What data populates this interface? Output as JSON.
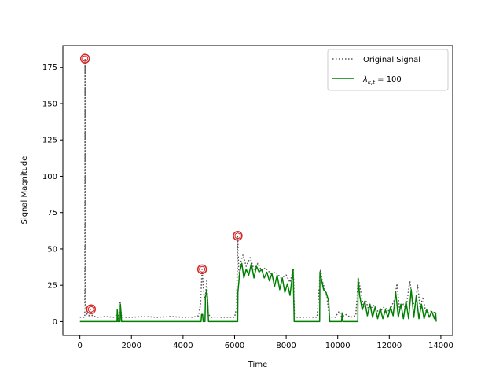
{
  "chart_data": {
    "type": "line",
    "title": "",
    "xlabel": "Time",
    "ylabel": "Signal Magnitude",
    "xlim": [
      -660,
      14460
    ],
    "ylim": [
      -9.5,
      190
    ],
    "x_ticks": [
      0,
      2000,
      4000,
      6000,
      8000,
      10000,
      12000,
      14000
    ],
    "y_ticks": [
      0,
      25,
      50,
      75,
      100,
      125,
      150,
      175
    ],
    "grid": false,
    "legend": {
      "placement": "top-right"
    },
    "series": [
      {
        "name": "Original Signal",
        "style": "dotted",
        "color": "#555555",
        "points": [
          [
            0,
            3
          ],
          [
            100,
            3
          ],
          [
            190,
            3
          ],
          [
            200,
            181
          ],
          [
            210,
            12
          ],
          [
            280,
            5
          ],
          [
            350,
            4
          ],
          [
            420,
            8.5
          ],
          [
            480,
            4
          ],
          [
            700,
            3
          ],
          [
            1000,
            3.5
          ],
          [
            1300,
            3
          ],
          [
            1450,
            5
          ],
          [
            1500,
            2
          ],
          [
            1560,
            14
          ],
          [
            1620,
            3
          ],
          [
            2000,
            3
          ],
          [
            2500,
            3.5
          ],
          [
            3000,
            3
          ],
          [
            3500,
            3.5
          ],
          [
            4000,
            3
          ],
          [
            4400,
            3
          ],
          [
            4600,
            4
          ],
          [
            4680,
            12
          ],
          [
            4740,
            36
          ],
          [
            4800,
            20
          ],
          [
            4860,
            15
          ],
          [
            4920,
            28
          ],
          [
            4980,
            5
          ],
          [
            5100,
            3
          ],
          [
            5600,
            3
          ],
          [
            6000,
            3
          ],
          [
            6080,
            10
          ],
          [
            6120,
            59
          ],
          [
            6170,
            30
          ],
          [
            6250,
            42
          ],
          [
            6330,
            46
          ],
          [
            6450,
            38
          ],
          [
            6600,
            44
          ],
          [
            6750,
            36
          ],
          [
            6900,
            40
          ],
          [
            7050,
            35
          ],
          [
            7200,
            37
          ],
          [
            7400,
            33
          ],
          [
            7600,
            34
          ],
          [
            7800,
            30
          ],
          [
            8000,
            32
          ],
          [
            8150,
            27
          ],
          [
            8280,
            36
          ],
          [
            8320,
            3
          ],
          [
            8800,
            3
          ],
          [
            9200,
            3
          ],
          [
            9330,
            36
          ],
          [
            9400,
            28
          ],
          [
            9500,
            22
          ],
          [
            9600,
            14
          ],
          [
            9680,
            3
          ],
          [
            9900,
            3
          ],
          [
            10050,
            7
          ],
          [
            10150,
            3
          ],
          [
            10300,
            5
          ],
          [
            10500,
            3
          ],
          [
            10700,
            4
          ],
          [
            10800,
            30
          ],
          [
            10900,
            20
          ],
          [
            11000,
            10
          ],
          [
            11100,
            14
          ],
          [
            11200,
            8
          ],
          [
            11400,
            11
          ],
          [
            11600,
            6
          ],
          [
            11800,
            10
          ],
          [
            12000,
            7
          ],
          [
            12200,
            15
          ],
          [
            12300,
            26
          ],
          [
            12400,
            8
          ],
          [
            12550,
            12
          ],
          [
            12650,
            9
          ],
          [
            12800,
            28
          ],
          [
            12900,
            14
          ],
          [
            13000,
            10
          ],
          [
            13100,
            25
          ],
          [
            13200,
            9
          ],
          [
            13300,
            17
          ],
          [
            13400,
            8
          ],
          [
            13500,
            6
          ],
          [
            13600,
            7
          ],
          [
            13800,
            6
          ]
        ]
      },
      {
        "name": "λ_{k,t} = 100",
        "style": "solid",
        "color": "#008000",
        "points": [
          [
            0,
            0
          ],
          [
            1440,
            0
          ],
          [
            1450,
            8
          ],
          [
            1480,
            0
          ],
          [
            1560,
            0
          ],
          [
            1570,
            12
          ],
          [
            1620,
            0
          ],
          [
            4700,
            0
          ],
          [
            4720,
            5
          ],
          [
            4760,
            5
          ],
          [
            4780,
            0
          ],
          [
            4850,
            0
          ],
          [
            4870,
            16
          ],
          [
            4920,
            22
          ],
          [
            4960,
            12
          ],
          [
            4990,
            0
          ],
          [
            6120,
            0
          ],
          [
            6130,
            20
          ],
          [
            6200,
            34
          ],
          [
            6280,
            40
          ],
          [
            6360,
            30
          ],
          [
            6450,
            36
          ],
          [
            6550,
            32
          ],
          [
            6650,
            40
          ],
          [
            6750,
            30
          ],
          [
            6850,
            38
          ],
          [
            6950,
            34
          ],
          [
            7050,
            36
          ],
          [
            7150,
            30
          ],
          [
            7250,
            34
          ],
          [
            7350,
            28
          ],
          [
            7450,
            33
          ],
          [
            7550,
            24
          ],
          [
            7650,
            32
          ],
          [
            7750,
            22
          ],
          [
            7850,
            30
          ],
          [
            7950,
            20
          ],
          [
            8050,
            26
          ],
          [
            8150,
            18
          ],
          [
            8270,
            36
          ],
          [
            8310,
            0
          ],
          [
            9300,
            0
          ],
          [
            9310,
            34
          ],
          [
            9380,
            28
          ],
          [
            9450,
            22
          ],
          [
            9550,
            20
          ],
          [
            9650,
            14
          ],
          [
            9690,
            0
          ],
          [
            10150,
            0
          ],
          [
            10170,
            6
          ],
          [
            10200,
            0
          ],
          [
            10780,
            0
          ],
          [
            10790,
            30
          ],
          [
            10850,
            18
          ],
          [
            10950,
            8
          ],
          [
            11050,
            14
          ],
          [
            11150,
            4
          ],
          [
            11250,
            12
          ],
          [
            11350,
            3
          ],
          [
            11450,
            10
          ],
          [
            11550,
            2
          ],
          [
            11650,
            9
          ],
          [
            11750,
            2
          ],
          [
            11850,
            8
          ],
          [
            11950,
            3
          ],
          [
            12050,
            10
          ],
          [
            12150,
            4
          ],
          [
            12250,
            20
          ],
          [
            12350,
            3
          ],
          [
            12450,
            12
          ],
          [
            12550,
            2
          ],
          [
            12650,
            14
          ],
          [
            12750,
            2
          ],
          [
            12850,
            22
          ],
          [
            12950,
            3
          ],
          [
            13050,
            18
          ],
          [
            13150,
            2
          ],
          [
            13250,
            12
          ],
          [
            13350,
            2
          ],
          [
            13450,
            8
          ],
          [
            13550,
            3
          ],
          [
            13650,
            7
          ],
          [
            13750,
            2
          ],
          [
            13800,
            6
          ],
          [
            13820,
            0
          ]
        ]
      }
    ],
    "markers": {
      "color": "#d62728",
      "points": [
        [
          200,
          181
        ],
        [
          430,
          8.5
        ],
        [
          4740,
          36
        ],
        [
          6120,
          59
        ]
      ]
    }
  }
}
